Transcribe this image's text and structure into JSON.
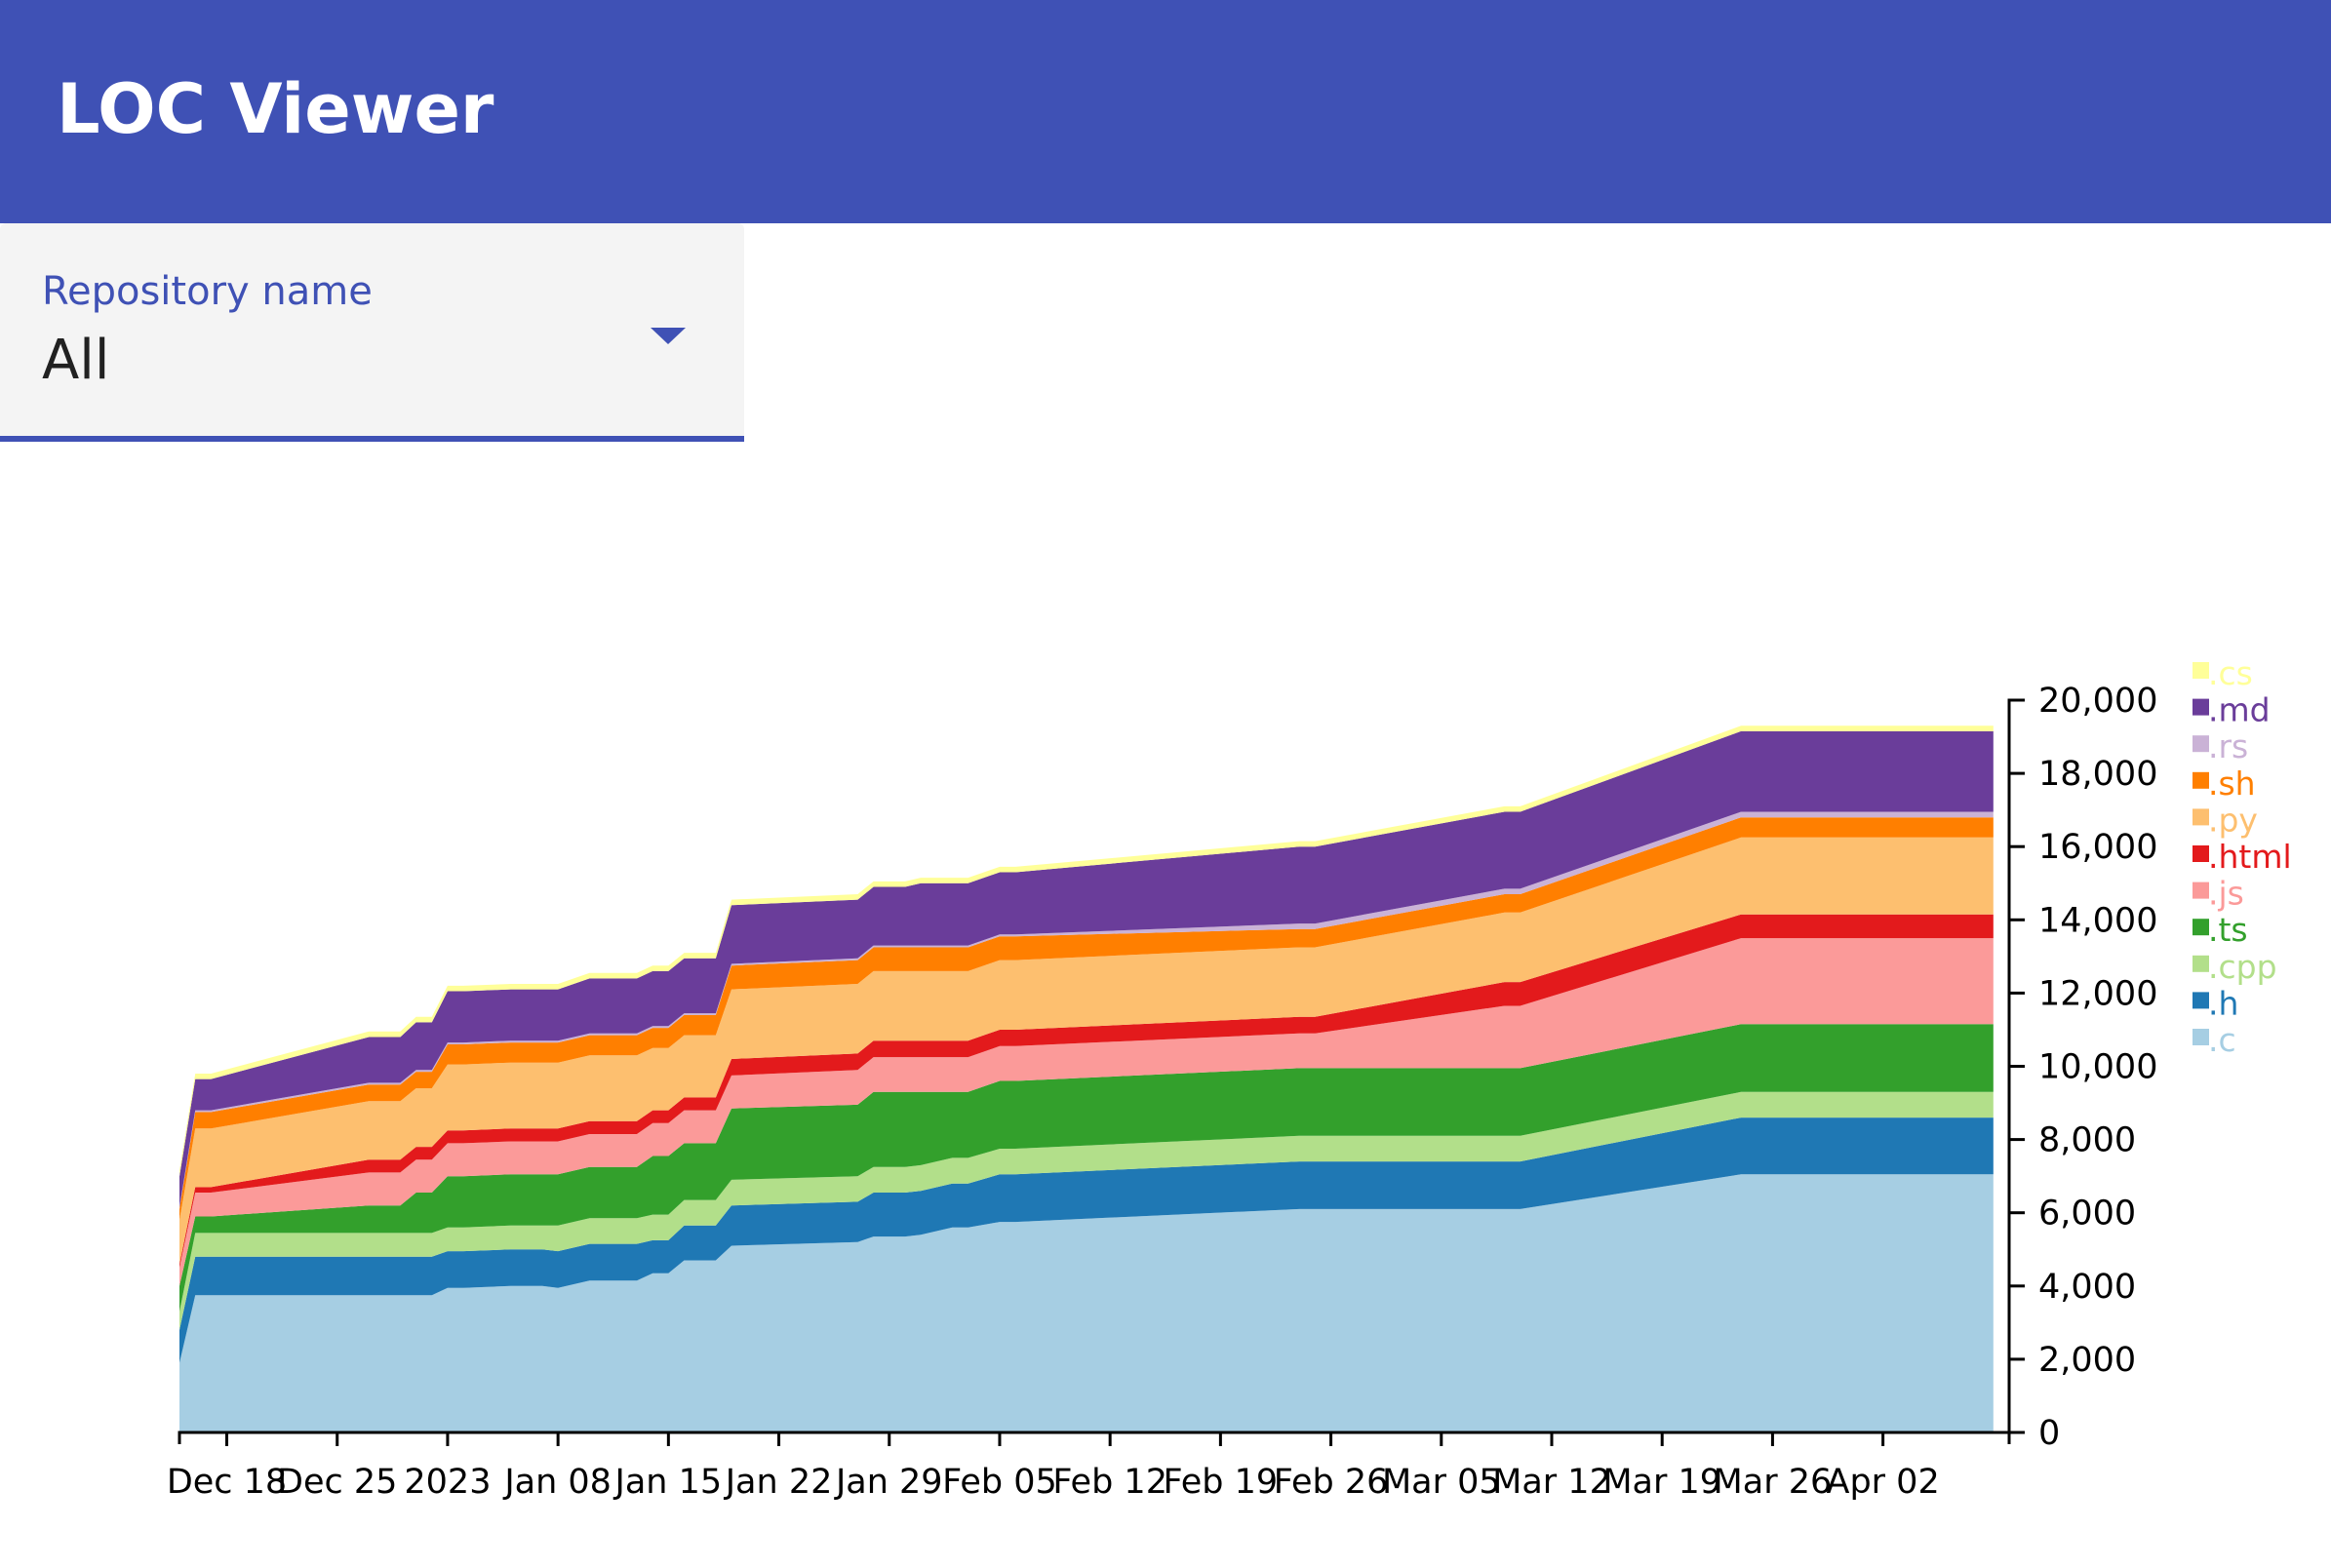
{
  "app": {
    "title": "LOC Viewer"
  },
  "repo_select": {
    "label": "Repository name",
    "value": "All"
  },
  "chart_data": {
    "type": "area",
    "stacked": true,
    "title": "",
    "xlabel": "",
    "ylabel": "",
    "x_axis": {
      "type": "time",
      "range": [
        "2022-12-15",
        "2023-04-10"
      ],
      "tick_labels": [
        "Dec 18",
        "Dec 25",
        "2023",
        "Jan 08",
        "Jan 15",
        "Jan 22",
        "Jan 29",
        "Feb 05",
        "Feb 12",
        "Feb 19",
        "Feb 26",
        "Mar 05",
        "Mar 12",
        "Mar 19",
        "Mar 26",
        "Apr 02"
      ]
    },
    "y_axis": {
      "position": "right",
      "ylim": [
        0,
        20000
      ],
      "ticks": [
        0,
        2000,
        4000,
        6000,
        8000,
        10000,
        12000,
        14000,
        16000,
        18000,
        20000
      ],
      "tick_labels": [
        "0",
        "2,000",
        "4,000",
        "6,000",
        "8,000",
        "10,000",
        "12,000",
        "14,000",
        "16,000",
        "18,000",
        "20,000"
      ]
    },
    "legend": {
      "placement": "top-right",
      "order": [
        ".cs",
        ".md",
        ".rs",
        ".sh",
        ".py",
        ".html",
        ".js",
        ".ts",
        ".cpp",
        ".h",
        ".c"
      ]
    },
    "grid": false,
    "x": [
      "2022-12-15",
      "2022-12-16",
      "2022-12-17",
      "2022-12-27",
      "2022-12-29",
      "2022-12-30",
      "2022-12-31",
      "2023-01-01",
      "2023-01-02",
      "2023-01-05",
      "2023-01-07",
      "2023-01-08",
      "2023-01-10",
      "2023-01-13",
      "2023-01-14",
      "2023-01-15",
      "2023-01-16",
      "2023-01-18",
      "2023-01-19",
      "2023-01-27",
      "2023-01-28",
      "2023-01-30",
      "2023-01-31",
      "2023-02-02",
      "2023-02-03",
      "2023-02-05",
      "2023-02-06",
      "2023-02-24",
      "2023-02-25",
      "2023-03-09",
      "2023-03-10",
      "2023-03-24",
      "2023-04-09"
    ],
    "series": [
      {
        "name": ".c",
        "color": "#a6cee3",
        "values": [
          1900,
          3750,
          3750,
          3750,
          3750,
          3750,
          3750,
          3950,
          3950,
          4000,
          4000,
          3950,
          4150,
          4150,
          4350,
          4350,
          4700,
          4700,
          5100,
          5200,
          5350,
          5350,
          5400,
          5600,
          5600,
          5750,
          5750,
          6100,
          6100,
          6100,
          6100,
          7050,
          7050
        ]
      },
      {
        "name": ".h",
        "color": "#1f78b4",
        "values": [
          900,
          1050,
          1050,
          1050,
          1050,
          1050,
          1050,
          1000,
          1000,
          1000,
          1000,
          1000,
          1000,
          1000,
          900,
          900,
          950,
          950,
          1100,
          1100,
          1200,
          1200,
          1200,
          1200,
          1200,
          1300,
          1300,
          1300,
          1300,
          1300,
          1300,
          1550,
          1550
        ]
      },
      {
        "name": ".cpp",
        "color": "#b2df8a",
        "values": [
          500,
          650,
          650,
          650,
          650,
          650,
          650,
          650,
          650,
          650,
          650,
          700,
          700,
          700,
          700,
          700,
          700,
          700,
          700,
          700,
          700,
          700,
          700,
          700,
          700,
          700,
          700,
          700,
          700,
          700,
          700,
          700,
          700
        ]
      },
      {
        "name": ".ts",
        "color": "#33a02c",
        "values": [
          700,
          450,
          450,
          750,
          750,
          1100,
          1100,
          1400,
          1400,
          1400,
          1400,
          1400,
          1400,
          1400,
          1600,
          1600,
          1550,
          1550,
          1950,
          1950,
          2050,
          2050,
          2000,
          1800,
          1800,
          1850,
          1850,
          1850,
          1850,
          1850,
          1850,
          1850,
          1850
        ]
      },
      {
        "name": ".js",
        "color": "#fb9a99",
        "values": [
          500,
          650,
          650,
          900,
          900,
          900,
          900,
          900,
          900,
          900,
          900,
          900,
          900,
          900,
          900,
          900,
          900,
          900,
          900,
          950,
          950,
          950,
          950,
          950,
          950,
          950,
          950,
          950,
          950,
          1700,
          1700,
          2350,
          2350
        ]
      },
      {
        "name": ".html",
        "color": "#e31a1c",
        "values": [
          100,
          150,
          150,
          350,
          350,
          350,
          350,
          350,
          350,
          350,
          350,
          350,
          350,
          350,
          350,
          350,
          350,
          350,
          450,
          450,
          450,
          450,
          450,
          450,
          450,
          450,
          450,
          450,
          450,
          650,
          650,
          650,
          650
        ]
      },
      {
        "name": ".py",
        "color": "#fdbf6f",
        "values": [
          1200,
          1600,
          1600,
          1600,
          1600,
          1600,
          1600,
          1800,
          1800,
          1800,
          1800,
          1800,
          1800,
          1800,
          1700,
          1700,
          1700,
          1700,
          1900,
          1900,
          1900,
          1900,
          1900,
          1900,
          1900,
          1900,
          1900,
          1900,
          1900,
          1900,
          1900,
          2100,
          2100
        ]
      },
      {
        "name": ".sh",
        "color": "#ff7f00",
        "values": [
          300,
          450,
          450,
          450,
          450,
          450,
          450,
          550,
          550,
          550,
          550,
          550,
          550,
          550,
          550,
          550,
          550,
          550,
          650,
          650,
          650,
          650,
          650,
          650,
          650,
          650,
          650,
          500,
          500,
          500,
          500,
          550,
          550
        ]
      },
      {
        "name": ".rs",
        "color": "#cab2d6",
        "values": [
          50,
          50,
          50,
          50,
          50,
          50,
          50,
          50,
          50,
          50,
          50,
          50,
          50,
          50,
          50,
          50,
          50,
          50,
          50,
          50,
          50,
          50,
          50,
          50,
          50,
          50,
          50,
          150,
          150,
          150,
          150,
          150,
          150
        ]
      },
      {
        "name": ".md",
        "color": "#6a3d9a",
        "values": [
          850,
          850,
          850,
          1250,
          1250,
          1300,
          1300,
          1400,
          1400,
          1400,
          1400,
          1400,
          1500,
          1500,
          1500,
          1500,
          1500,
          1500,
          1600,
          1600,
          1600,
          1600,
          1700,
          1700,
          1700,
          1700,
          1700,
          2100,
          2100,
          2100,
          2100,
          2200,
          2200
        ]
      },
      {
        "name": ".cs",
        "color": "#ffff99",
        "values": [
          150,
          150,
          150,
          150,
          150,
          150,
          150,
          150,
          150,
          150,
          150,
          150,
          150,
          150,
          150,
          150,
          150,
          150,
          150,
          150,
          150,
          150,
          150,
          150,
          150,
          150,
          150,
          150,
          150,
          150,
          150,
          150,
          150
        ]
      }
    ]
  }
}
